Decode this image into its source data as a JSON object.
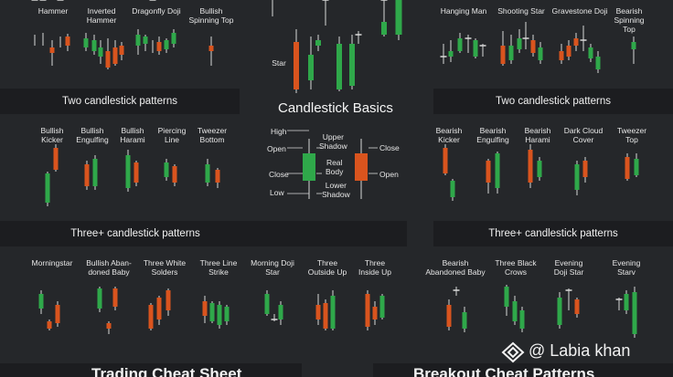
{
  "colors": {
    "bull": "#2fa84a",
    "bear": "#d9541e",
    "wick": "#d8d8d8",
    "band": "#1c1d20",
    "bg": "#25272a"
  },
  "title": "Candlestick Basics",
  "sections": {
    "two_left": "Two candlestick patterns",
    "two_right": "Two candlestick patterns",
    "three_left": "Three+ candlestick patterns",
    "three_right": "Three+ candlestick patterns"
  },
  "top_left_labels": [
    "Hammer",
    "Inverted\nHammer",
    "Dragonfly Doji",
    "Bullish\nSpinning Top"
  ],
  "top_right_labels": [
    "Hanging Man",
    "Shooting Star",
    "Gravestone Doji",
    "Bearish\nSpinning Top"
  ],
  "center_star_label": "Star",
  "two_left_labels": [
    "Bullish\nKicker",
    "Bullish\nEngulfing",
    "Bullish\nHarami",
    "Piercing\nLine",
    "Tweezer\nBottom"
  ],
  "two_right_labels": [
    "Bearish\nKicker",
    "Bearish\nEngulfing",
    "Bearish\nHarami",
    "Dark Cloud\nCover",
    "Tweezer\nTop"
  ],
  "three_left_labels": [
    "Morningstar",
    "Bullish Aban-\ndoned Baby",
    "Three White\nSolders",
    "Three Line\nStrike",
    "Morning Doji\nStar",
    "Three\nOutside Up",
    "Three\nInside Up"
  ],
  "three_right_labels": [
    "Bearish\nAbandoned Baby",
    "Three Black\nCrows",
    "Evening\nDoji Star",
    "Evening\nStarv"
  ],
  "diagram": {
    "high": "High",
    "open": "Open",
    "close": "Close",
    "low": "Low",
    "upper_shadow": "Upper\nShadow",
    "real_body": "Real\nBody",
    "lower_shadow": "Lower\nShadow",
    "close_right": "Close",
    "open_right": "Open"
  },
  "watermark": "@ Labia khan",
  "bottom_left_title": "Trading Cheat Sheet",
  "bottom_right_title": "Breakout Cheat Patterns"
}
